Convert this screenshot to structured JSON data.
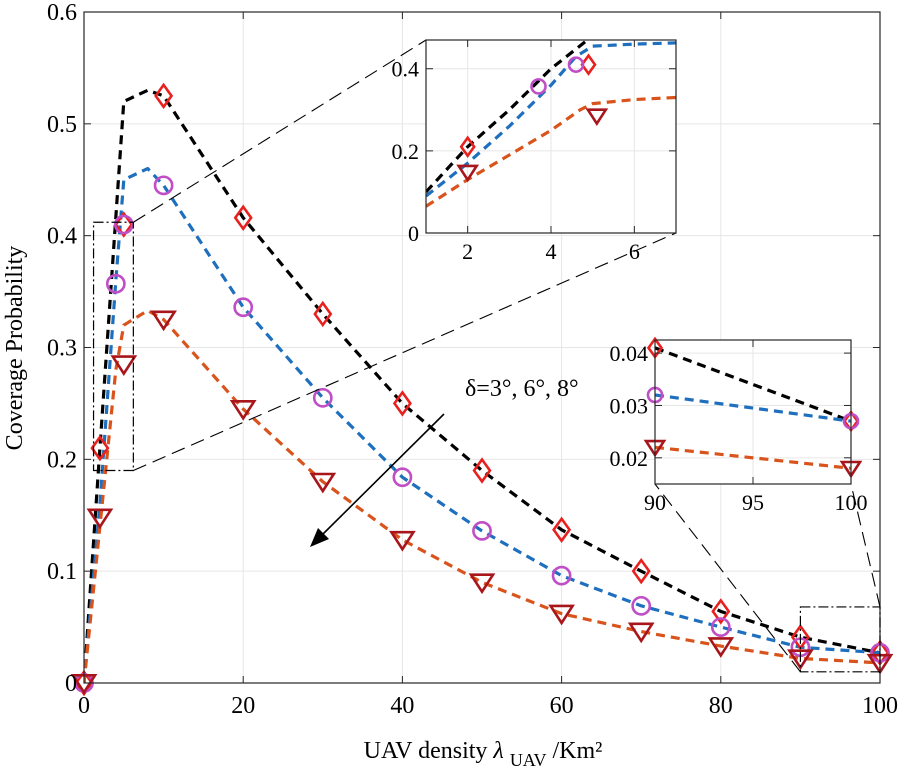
{
  "chart_data": {
    "type": "line",
    "xlabel": {
      "main": "UAV density ",
      "sym": "λ",
      "sub": "UAV",
      "unit": "/Km²"
    },
    "ylabel": "Coverage Probability",
    "xlim": [
      0,
      100
    ],
    "ylim": [
      0,
      0.6
    ],
    "xticks": [
      0,
      20,
      40,
      60,
      80,
      100
    ],
    "yticks": [
      0,
      0.1,
      0.2,
      0.3,
      0.4,
      0.5,
      0.6
    ],
    "xtick_labels": [
      "0",
      "20",
      "40",
      "60",
      "80",
      "100"
    ],
    "ytick_labels": [
      "0",
      "0.1",
      "0.2",
      "0.3",
      "0.4",
      "0.5",
      "0.6"
    ],
    "grid": true,
    "annotation": "δ=3°, 6°, 8°",
    "series": [
      {
        "color": "#000000",
        "marker": "diamond",
        "marker_color": "#e8211f",
        "x": [
          0,
          2,
          5,
          8,
          10,
          20,
          30,
          40,
          50,
          60,
          70,
          80,
          90,
          100
        ],
        "y": [
          0,
          0.21,
          0.52,
          0.53,
          0.525,
          0.416,
          0.33,
          0.25,
          0.19,
          0.137,
          0.1,
          0.064,
          0.041,
          0.027
        ],
        "marker_x": [
          0,
          2,
          5,
          10,
          20,
          30,
          40,
          50,
          60,
          70,
          80,
          90,
          100
        ],
        "marker_y": [
          0,
          0.21,
          0.41,
          0.525,
          0.416,
          0.33,
          0.25,
          0.19,
          0.137,
          0.1,
          0.064,
          0.041,
          0.027
        ]
      },
      {
        "color": "#1f6fbf",
        "marker": "circle",
        "marker_color": "#c04ec7",
        "x": [
          0,
          2,
          4,
          5,
          8,
          10,
          20,
          30,
          40,
          50,
          60,
          70,
          80,
          90,
          100
        ],
        "y": [
          0,
          0.16,
          0.36,
          0.45,
          0.46,
          0.445,
          0.336,
          0.255,
          0.184,
          0.136,
          0.096,
          0.069,
          0.05,
          0.032,
          0.027
        ],
        "marker_x": [
          0,
          4,
          5,
          10,
          20,
          30,
          40,
          50,
          60,
          70,
          80,
          90,
          100
        ],
        "marker_y": [
          0,
          0.357,
          0.41,
          0.445,
          0.336,
          0.255,
          0.184,
          0.136,
          0.096,
          0.069,
          0.05,
          0.032,
          0.027
        ]
      },
      {
        "color": "#d9541c",
        "marker": "triangle-down",
        "marker_color": "#a8161c",
        "x": [
          0,
          2,
          4,
          5,
          8,
          10,
          20,
          30,
          40,
          50,
          60,
          70,
          80,
          90,
          100
        ],
        "y": [
          0,
          0.14,
          0.28,
          0.32,
          0.333,
          0.325,
          0.245,
          0.18,
          0.128,
          0.09,
          0.062,
          0.046,
          0.033,
          0.022,
          0.018
        ],
        "marker_x": [
          0,
          2,
          5,
          10,
          20,
          30,
          40,
          50,
          60,
          70,
          80,
          90,
          100
        ],
        "marker_y": [
          0,
          0.148,
          0.285,
          0.325,
          0.245,
          0.18,
          0.128,
          0.09,
          0.062,
          0.046,
          0.033,
          0.022,
          0.018
        ]
      }
    ],
    "insets": [
      {
        "xlim": [
          1,
          7
        ],
        "ylim": [
          0,
          0.47
        ],
        "xticks": [
          2,
          4,
          6
        ],
        "yticks": [
          0,
          0.2,
          0.4
        ],
        "xtick_labels": [
          "2",
          "4",
          "6"
        ],
        "ytick_labels": [
          "0",
          "0.2",
          "0.4"
        ],
        "source_box": {
          "x": [
            1.2,
            6.2
          ],
          "y": [
            0.19,
            0.412
          ]
        },
        "series": [
          {
            "x": [
              1,
              2,
              3,
              4,
              5,
              6,
              7
            ],
            "y": [
              0.1,
              0.21,
              0.3,
              0.4,
              0.48,
              0.5,
              0.5
            ],
            "marker_x": [
              2,
              4.9
            ],
            "marker_y": [
              0.21,
              0.41
            ]
          },
          {
            "x": [
              1,
              2,
              3,
              4,
              4.6,
              5,
              6,
              7
            ],
            "y": [
              0.09,
              0.17,
              0.26,
              0.36,
              0.43,
              0.455,
              0.46,
              0.463
            ],
            "marker_x": [
              3.7,
              4.6
            ],
            "marker_y": [
              0.357,
              0.41
            ]
          },
          {
            "x": [
              1,
              2,
              3,
              4,
              4.7,
              5,
              6,
              7
            ],
            "y": [
              0.065,
              0.13,
              0.19,
              0.25,
              0.3,
              0.315,
              0.325,
              0.33
            ],
            "marker_x": [
              2,
              5.1
            ],
            "marker_y": [
              0.148,
              0.285
            ]
          }
        ]
      },
      {
        "xlim": [
          90,
          100
        ],
        "ylim": [
          0.015,
          0.0425
        ],
        "xticks": [
          90,
          95,
          100
        ],
        "yticks": [
          0.02,
          0.03,
          0.04
        ],
        "xtick_labels": [
          "90",
          "95",
          "100"
        ],
        "ytick_labels": [
          "0.02",
          "0.03",
          "0.04"
        ],
        "source_box": {
          "x": [
            90,
            100
          ],
          "y": [
            0.01,
            0.068
          ]
        },
        "series": [
          {
            "x": [
              90,
              100
            ],
            "y": [
              0.041,
              0.027
            ],
            "marker_x": [
              90,
              100
            ],
            "marker_y": [
              0.041,
              0.027
            ]
          },
          {
            "x": [
              90,
              100
            ],
            "y": [
              0.032,
              0.027
            ],
            "marker_x": [
              90,
              100
            ],
            "marker_y": [
              0.032,
              0.027
            ]
          },
          {
            "x": [
              90,
              100
            ],
            "y": [
              0.022,
              0.018
            ],
            "marker_x": [
              90,
              100
            ],
            "marker_y": [
              0.022,
              0.018
            ]
          }
        ]
      }
    ]
  }
}
